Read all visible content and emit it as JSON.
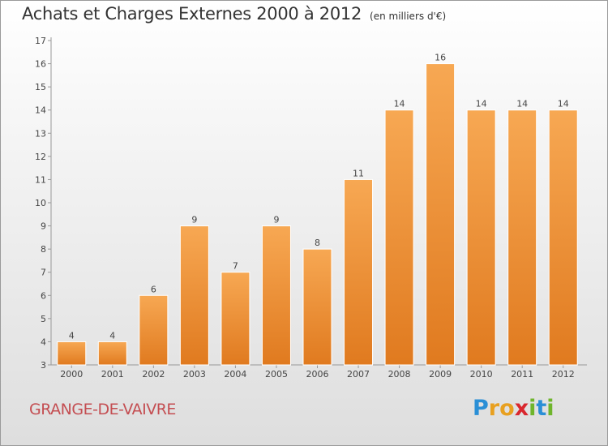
{
  "title": "Achats et Charges Externes 2000 à 2012",
  "unit": "(en milliers d'€)",
  "commune": "GRANGE-DE-VAIVRE",
  "logo": {
    "letters": [
      "P",
      "r",
      "o",
      "x",
      "i",
      "t",
      "i"
    ],
    "colors": [
      "#2a8fd6",
      "#e8a020",
      "#e8a020",
      "#d9272e",
      "#6fb52c",
      "#2a8fd6",
      "#6fb52c"
    ]
  },
  "colors": {
    "bar_top": "#f7a853",
    "bar_bottom": "#e07a1f",
    "commune": "#c44e52"
  },
  "chart_data": {
    "type": "bar",
    "categories": [
      "2000",
      "2001",
      "2002",
      "2003",
      "2004",
      "2005",
      "2006",
      "2007",
      "2008",
      "2009",
      "2010",
      "2011",
      "2012"
    ],
    "values": [
      4,
      4,
      6,
      9,
      7,
      9,
      8,
      11,
      14,
      16,
      14,
      14,
      14
    ],
    "ylim": [
      3,
      17
    ],
    "yticks": [
      3,
      4,
      5,
      6,
      7,
      8,
      9,
      10,
      11,
      12,
      13,
      14,
      15,
      16,
      17
    ],
    "grid": false,
    "data_labels": true
  }
}
